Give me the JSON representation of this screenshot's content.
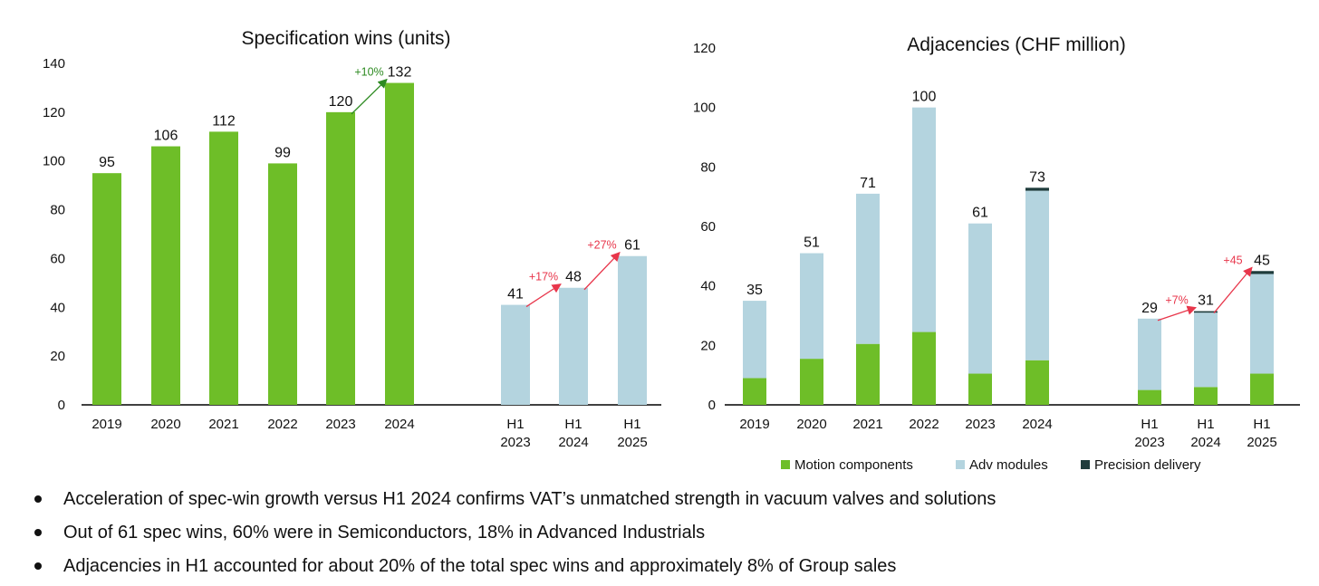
{
  "colors": {
    "green": "#6EBE28",
    "light_blue": "#B4D4DF",
    "dark": "#1F3C3C",
    "arrow_green": "#2E8B22",
    "arrow_red": "#E8364B",
    "axis": "#000000"
  },
  "chart_data": [
    {
      "type": "bar",
      "title": "Specification wins (units)",
      "xlabel": "",
      "ylabel": "",
      "ylim": [
        0,
        140
      ],
      "yticks": [
        "0",
        "20",
        "40",
        "60",
        "80",
        "100",
        "120",
        "140"
      ],
      "categories": [
        "2019",
        "2020",
        "2021",
        "2022",
        "2023",
        "2024",
        "H1 2023",
        "H1 2024",
        "H1 2025"
      ],
      "values": [
        95,
        106,
        112,
        99,
        120,
        132,
        41,
        48,
        61
      ],
      "value_labels": [
        "95",
        "106",
        "112",
        "99",
        "120",
        "132",
        "41",
        "48",
        "61"
      ],
      "bar_colors": [
        "green",
        "green",
        "green",
        "green",
        "green",
        "green",
        "light_blue",
        "light_blue",
        "light_blue"
      ],
      "annotations": [
        {
          "from": 4,
          "to": 5,
          "text": "+10%",
          "color": "arrow_green"
        },
        {
          "from": 6,
          "to": 7,
          "text": "+17%",
          "color": "arrow_red"
        },
        {
          "from": 7,
          "to": 8,
          "text": "+27%",
          "color": "arrow_red"
        }
      ]
    },
    {
      "type": "stacked_bar",
      "title": "Adjacencies (CHF million)",
      "xlabel": "",
      "ylabel": "",
      "ylim": [
        0,
        120
      ],
      "yticks": [
        "0",
        "20",
        "40",
        "60",
        "80",
        "100",
        "120"
      ],
      "categories": [
        "2019",
        "2020",
        "2021",
        "2022",
        "2023",
        "2024",
        "H1 2023",
        "H1 2024",
        "H1 2025"
      ],
      "series": [
        {
          "name": "Motion components",
          "color": "green",
          "values": [
            9,
            15.5,
            20.5,
            24.5,
            10.5,
            15,
            5,
            6,
            10.5
          ]
        },
        {
          "name": "Adv modules",
          "color": "light_blue",
          "values": [
            26,
            35.5,
            50.5,
            75.5,
            50.5,
            57,
            24,
            25,
            33.5
          ]
        },
        {
          "name": "Precision delivery",
          "color": "dark",
          "values": [
            0,
            0,
            0,
            0,
            0,
            1,
            0,
            0.5,
            1
          ]
        }
      ],
      "totals": [
        35,
        51,
        71,
        100,
        61,
        73,
        29,
        31,
        45
      ],
      "total_labels": [
        "35",
        "51",
        "71",
        "100",
        "61",
        "73",
        "29",
        "31",
        "45"
      ],
      "legend_position": "bottom",
      "annotations": [
        {
          "from": 6,
          "to": 7,
          "text": "+7%",
          "color": "arrow_red"
        },
        {
          "from": 7,
          "to": 8,
          "text": "+45",
          "color": "arrow_red"
        }
      ]
    }
  ],
  "bullets": [
    "Acceleration of spec-win growth versus H1 2024 confirms VAT’s unmatched strength in vacuum valves and solutions",
    "Out of 61 spec wins, 60% were in Semiconductors, 18% in Advanced Industrials",
    "Adjacencies in H1 accounted for about 20% of the total spec wins and approximately 8% of Group sales"
  ]
}
